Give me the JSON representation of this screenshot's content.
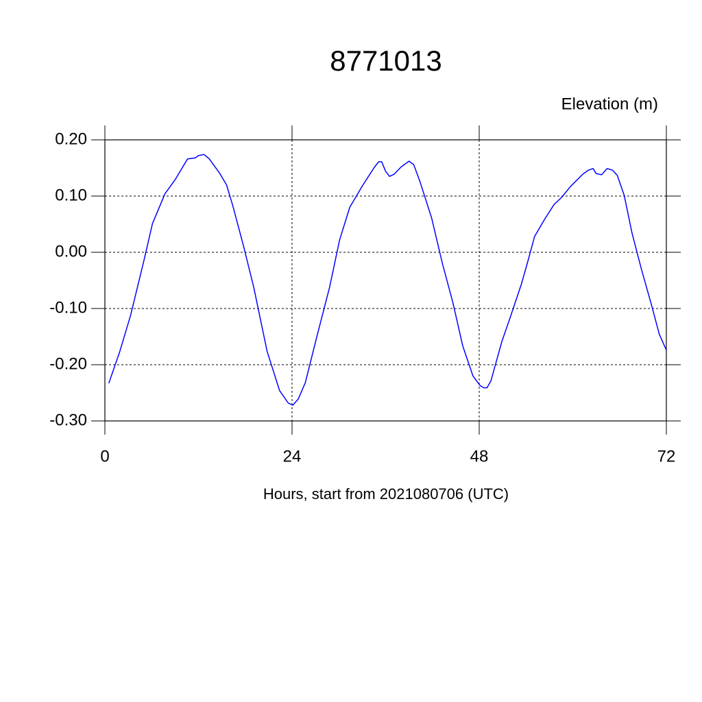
{
  "chart_data": {
    "type": "line",
    "title": "8771013",
    "subtitle": "Elevation (m)",
    "x_label": "Hours, start from 2021080706 (UTC)",
    "color": "#0000ff",
    "grid": true,
    "xlim": [
      0,
      72
    ],
    "xticks": [
      0,
      24,
      48,
      72
    ],
    "ylim": [
      -0.3,
      0.2
    ],
    "yticks": [
      {
        "value": 0.2,
        "label": "0.20"
      },
      {
        "value": 0.1,
        "label": "0.10"
      },
      {
        "value": 0,
        "label": "0.00"
      },
      {
        "value": -0.1,
        "label": "-0.10"
      },
      {
        "value": -0.2,
        "label": "-0.20"
      },
      {
        "value": -0.3,
        "label": "-0.30"
      }
    ],
    "x": [
      0.5,
      1.9,
      3.3,
      5.0,
      6.1,
      7.7,
      9.0,
      10.6,
      11.6,
      12.0,
      12.7,
      13.4,
      14.7,
      15.6,
      16.4,
      17.8,
      19.1,
      20.8,
      22.4,
      23.5,
      24.1,
      24.8,
      25.7,
      27.2,
      28.8,
      30.1,
      31.4,
      33.1,
      34.5,
      35.1,
      35.5,
      36.0,
      36.5,
      37.1,
      38.0,
      39.0,
      39.6,
      40.4,
      41.9,
      43.3,
      44.6,
      45.9,
      47.2,
      48.1,
      48.6,
      49.0,
      49.5,
      50.9,
      52.0,
      53.4,
      54.2,
      55.1,
      56.4,
      57.6,
      58.6,
      59.7,
      61.3,
      62.0,
      62.6,
      63.0,
      63.7,
      64.4,
      65.1,
      65.7,
      66.6,
      67.6,
      68.8,
      70.1,
      71.1,
      72.0
    ],
    "values": [
      -0.233,
      -0.177,
      -0.112,
      -0.015,
      0.051,
      0.104,
      0.129,
      0.166,
      0.168,
      0.172,
      0.174,
      0.166,
      0.141,
      0.12,
      0.083,
      0.01,
      -0.063,
      -0.176,
      -0.246,
      -0.268,
      -0.272,
      -0.261,
      -0.232,
      -0.149,
      -0.063,
      0.022,
      0.08,
      0.12,
      0.15,
      0.161,
      0.161,
      0.144,
      0.135,
      0.139,
      0.152,
      0.162,
      0.156,
      0.126,
      0.061,
      -0.021,
      -0.088,
      -0.167,
      -0.22,
      -0.237,
      -0.241,
      -0.241,
      -0.229,
      -0.159,
      -0.115,
      -0.057,
      -0.018,
      0.028,
      0.059,
      0.085,
      0.098,
      0.117,
      0.139,
      0.146,
      0.149,
      0.14,
      0.138,
      0.149,
      0.146,
      0.137,
      0.101,
      0.034,
      -0.03,
      -0.094,
      -0.146,
      -0.174
    ]
  }
}
